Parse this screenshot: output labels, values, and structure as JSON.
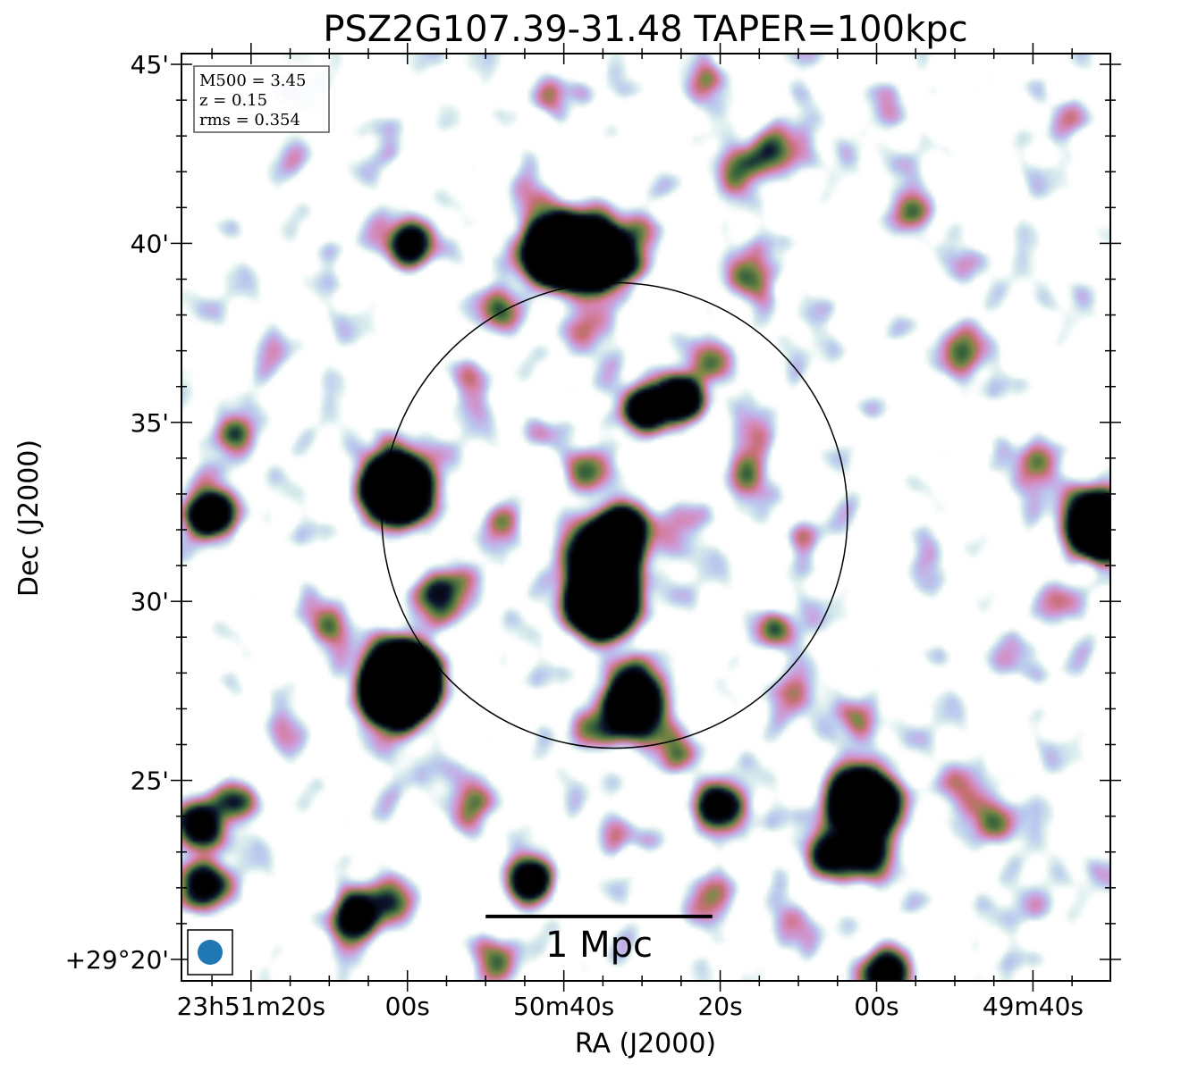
{
  "chart_data": {
    "type": "heatmap",
    "title": "PSZ2G107.39-31.48 TAPER=100kpc",
    "xlabel": "RA (J2000)",
    "ylabel": "Dec (J2000)",
    "x_ticks": [
      {
        "label": "23h51m20s",
        "ra_s": 80
      },
      {
        "label": "00s",
        "ra_s": 60
      },
      {
        "label": "50m40s",
        "ra_s": 40
      },
      {
        "label": "20s",
        "ra_s": 20
      },
      {
        "label": "00s",
        "ra_s": 0
      },
      {
        "label": "49m40s",
        "ra_s": -20
      }
    ],
    "y_ticks": [
      {
        "label": "45'",
        "dec_arcmin": 45
      },
      {
        "label": "40'",
        "dec_arcmin": 40
      },
      {
        "label": "35'",
        "dec_arcmin": 35
      },
      {
        "label": "30'",
        "dec_arcmin": 30
      },
      {
        "label": "25'",
        "dec_arcmin": 25
      },
      {
        "label": "+29°20'",
        "dec_arcmin": 20
      }
    ],
    "xlim_ra_s": [
      88.9,
      -29.9
    ],
    "ylim_dec_arcmin": [
      19.4,
      45.3
    ],
    "info_box": [
      "M500 = 3.45",
      "z = 0.15",
      "rms = 0.354"
    ],
    "scale_bar_label": "1 Mpc",
    "scale_bar_ra_s": [
      50,
      21
    ],
    "scale_bar_dec_arcmin": 21.2,
    "circle": {
      "ra_s": 33.5,
      "dec_arcmin": 32.4,
      "radius_arcmin": 6.5
    },
    "beam_color": "#1f77b4",
    "colormap": [
      "#ffffff",
      "#d8ecec",
      "#b9c9ee",
      "#c9a3e0",
      "#d585b2",
      "#c86f76",
      "#7d8a45",
      "#2f5e3a",
      "#0d1530",
      "#000000"
    ],
    "sources": [
      {
        "ra_s": 61.5,
        "dec_arcmin": 33.2,
        "peak": 8
      },
      {
        "ra_s": 61.8,
        "dec_arcmin": 27.5,
        "peak": 8
      },
      {
        "ra_s": 60.5,
        "dec_arcmin": 28.0,
        "peak": 7
      },
      {
        "ra_s": 35.5,
        "dec_arcmin": 30.0,
        "peak": 8
      },
      {
        "ra_s": 35.0,
        "dec_arcmin": 31.3,
        "peak": 6
      },
      {
        "ra_s": 33.0,
        "dec_arcmin": 32.1,
        "peak": 3.5
      },
      {
        "ra_s": 41.0,
        "dec_arcmin": 39.8,
        "peak": 8
      },
      {
        "ra_s": 36.0,
        "dec_arcmin": 39.7,
        "peak": 8
      },
      {
        "ra_s": 31.5,
        "dec_arcmin": 27.1,
        "peak": 5
      },
      {
        "ra_s": 30.0,
        "dec_arcmin": 35.4,
        "peak": 3.5
      },
      {
        "ra_s": 25.5,
        "dec_arcmin": 35.7,
        "peak": 3.5
      },
      {
        "ra_s": 60.0,
        "dec_arcmin": 40.0,
        "peak": 3
      },
      {
        "ra_s": 85.5,
        "dec_arcmin": 32.5,
        "peak": 4
      },
      {
        "ra_s": 86.5,
        "dec_arcmin": 23.8,
        "peak": 3
      },
      {
        "ra_s": 86.5,
        "dec_arcmin": 22.1,
        "peak": 2.5
      },
      {
        "ra_s": 67.0,
        "dec_arcmin": 21.2,
        "peak": 3
      },
      {
        "ra_s": 44.5,
        "dec_arcmin": 22.3,
        "peak": 3
      },
      {
        "ra_s": 20.5,
        "dec_arcmin": 24.3,
        "peak": 3
      },
      {
        "ra_s": 2.0,
        "dec_arcmin": 24.4,
        "peak": 8
      },
      {
        "ra_s": 6.0,
        "dec_arcmin": 23.0,
        "peak": 3
      },
      {
        "ra_s": 1.0,
        "dec_arcmin": 22.9,
        "peak": 2.5
      },
      {
        "ra_s": -1.0,
        "dec_arcmin": 19.7,
        "peak": 3
      },
      {
        "ra_s": -28.5,
        "dec_arcmin": 32.2,
        "peak": 7
      },
      {
        "ra_s": -20.5,
        "dec_arcmin": 33.9,
        "peak": 1.6
      },
      {
        "ra_s": 16.5,
        "dec_arcmin": 39.1,
        "peak": 1.6
      },
      {
        "ra_s": 49.0,
        "dec_arcmin": 38.2,
        "peak": 1.5
      },
      {
        "ra_s": 57.0,
        "dec_arcmin": 30.2,
        "peak": 1.4
      },
      {
        "ra_s": 13.0,
        "dec_arcmin": 29.3,
        "peak": 1.4
      },
      {
        "ra_s": 17.0,
        "dec_arcmin": 33.5,
        "peak": 1.3
      },
      {
        "ra_s": 26.0,
        "dec_arcmin": 32.0,
        "peak": 1.2
      },
      {
        "ra_s": 47.5,
        "dec_arcmin": 32.2,
        "peak": 1.1
      },
      {
        "ra_s": 37.0,
        "dec_arcmin": 33.7,
        "peak": 1.0
      },
      {
        "ra_s": 15.5,
        "dec_arcmin": 34.8,
        "peak": 1.0
      },
      {
        "ra_s": 82.5,
        "dec_arcmin": 34.7,
        "peak": 1.5
      },
      {
        "ra_s": 18.0,
        "dec_arcmin": 42.2,
        "peak": 1.4
      },
      {
        "ra_s": 13.0,
        "dec_arcmin": 42.6,
        "peak": 1.4
      },
      {
        "ra_s": -4.5,
        "dec_arcmin": 41.0,
        "peak": 1.5
      },
      {
        "ra_s": -10.5,
        "dec_arcmin": 37.0,
        "peak": 1.3
      },
      {
        "ra_s": 70.0,
        "dec_arcmin": 29.5,
        "peak": 1.3
      },
      {
        "ra_s": 54.0,
        "dec_arcmin": 30.5,
        "peak": 1.2
      },
      {
        "ra_s": 31.0,
        "dec_arcmin": 28.0,
        "peak": 1.0
      },
      {
        "ra_s": 26.0,
        "dec_arcmin": 26.0,
        "peak": 1.0
      },
      {
        "ra_s": 37.0,
        "dec_arcmin": 26.4,
        "peak": 1.2
      },
      {
        "ra_s": 52.0,
        "dec_arcmin": 24.4,
        "peak": 1.2
      },
      {
        "ra_s": 82.5,
        "dec_arcmin": 24.5,
        "peak": 1.3
      },
      {
        "ra_s": -15.0,
        "dec_arcmin": 24.0,
        "peak": 1.8
      },
      {
        "ra_s": -10.0,
        "dec_arcmin": 25.0,
        "peak": 1.3
      },
      {
        "ra_s": 62.0,
        "dec_arcmin": 21.7,
        "peak": 1.4
      },
      {
        "ra_s": 21.5,
        "dec_arcmin": 21.8,
        "peak": 1.2
      },
      {
        "ra_s": 48.5,
        "dec_arcmin": 19.9,
        "peak": 1.5
      },
      {
        "ra_s": 38.0,
        "dec_arcmin": 37.5,
        "peak": 1.0
      },
      {
        "ra_s": 21.0,
        "dec_arcmin": 36.8,
        "peak": 1.2
      },
      {
        "ra_s": 45.0,
        "dec_arcmin": 41.2,
        "peak": 0.9
      },
      {
        "ra_s": 30.0,
        "dec_arcmin": 40.5,
        "peak": 0.9
      },
      {
        "ra_s": 10.0,
        "dec_arcmin": 31.7,
        "peak": 0.9
      },
      {
        "ra_s": 3.0,
        "dec_arcmin": 27.0,
        "peak": 0.9
      },
      {
        "ra_s": -18.0,
        "dec_arcmin": 28.3,
        "peak": 0.8
      },
      {
        "ra_s": 74.0,
        "dec_arcmin": 42.5,
        "peak": 0.8
      },
      {
        "ra_s": 63.0,
        "dec_arcmin": 43.0,
        "peak": 0.8
      },
      {
        "ra_s": -1.0,
        "dec_arcmin": 44.0,
        "peak": 0.8
      },
      {
        "ra_s": -24.0,
        "dec_arcmin": 43.5,
        "peak": 0.8
      },
      {
        "ra_s": 8.0,
        "dec_arcmin": 38.0,
        "peak": 0.8
      },
      {
        "ra_s": 78.0,
        "dec_arcmin": 37.0,
        "peak": 0.8
      },
      {
        "ra_s": 52.0,
        "dec_arcmin": 36.0,
        "peak": 0.8
      },
      {
        "ra_s": 44.0,
        "dec_arcmin": 34.7,
        "peak": 0.8
      },
      {
        "ra_s": 12.0,
        "dec_arcmin": 27.5,
        "peak": 0.9
      },
      {
        "ra_s": -6.0,
        "dec_arcmin": 31.0,
        "peak": 0.8
      },
      {
        "ra_s": -22.0,
        "dec_arcmin": 30.0,
        "peak": 0.8
      },
      {
        "ra_s": 76.0,
        "dec_arcmin": 26.5,
        "peak": 0.8
      },
      {
        "ra_s": 58.0,
        "dec_arcmin": 25.5,
        "peak": 0.8
      },
      {
        "ra_s": 12.0,
        "dec_arcmin": 21.0,
        "peak": 0.8
      },
      {
        "ra_s": -20.0,
        "dec_arcmin": 21.5,
        "peak": 0.8
      },
      {
        "ra_s": 34.0,
        "dec_arcmin": 23.5,
        "peak": 0.8
      },
      {
        "ra_s": 72.0,
        "dec_arcmin": 39.5,
        "peak": 0.7
      },
      {
        "ra_s": -12.0,
        "dec_arcmin": 39.5,
        "peak": 0.7
      },
      {
        "ra_s": 40.0,
        "dec_arcmin": 44.0,
        "peak": 0.7
      },
      {
        "ra_s": 22.0,
        "dec_arcmin": 44.5,
        "peak": 0.7
      }
    ]
  }
}
